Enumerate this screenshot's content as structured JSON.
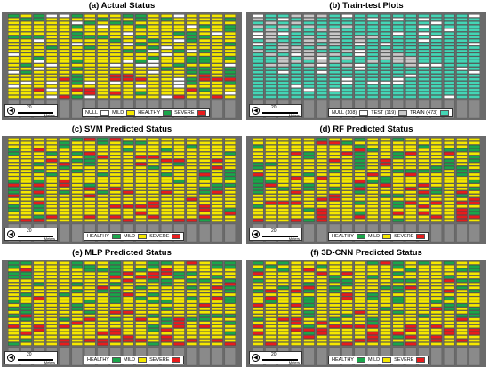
{
  "colors": {
    "healthy": "#1aa64a",
    "mild": "#f5e800",
    "severe": "#e81c1c",
    "null": "#ffffff",
    "test": "#c8c8c8",
    "train": "#44d6b6",
    "background": "#6a6a6a"
  },
  "panels": [
    {
      "id": "a",
      "title": "(a) Actual Status",
      "mode": "actual",
      "scale_label": "20",
      "scale_unit": "Meters",
      "legend": [
        {
          "label": "NULL",
          "color": "#ffffff"
        },
        {
          "label": "MILD",
          "color": "#f5e800"
        },
        {
          "label": "HEALTHY",
          "color": "#1aa64a"
        },
        {
          "label": "SEVERE",
          "color": "#e81c1c"
        }
      ]
    },
    {
      "id": "b",
      "title": "(b) Train-test Plots",
      "mode": "split",
      "scale_label": "20",
      "scale_unit": "Meters",
      "legend": [
        {
          "label": "NULL (108)",
          "color": "#ffffff"
        },
        {
          "label": "TEST (119)",
          "color": "#c8c8c8"
        },
        {
          "label": "TRAIN (473)",
          "color": "#44d6b6"
        }
      ]
    },
    {
      "id": "c",
      "title": "(c) SVM Predicted Status",
      "mode": "pred",
      "scale_label": "20",
      "scale_unit": "Meters",
      "legend": [
        {
          "label": "HEALTHY",
          "color": "#1aa64a"
        },
        {
          "label": "MILD",
          "color": "#f5e800"
        },
        {
          "label": "SEVERE",
          "color": "#e81c1c"
        }
      ]
    },
    {
      "id": "d",
      "title": "(d) RF Predicted Status",
      "mode": "pred",
      "scale_label": "20",
      "scale_unit": "Meters",
      "legend": [
        {
          "label": "HEALTHY",
          "color": "#1aa64a"
        },
        {
          "label": "MILD",
          "color": "#f5e800"
        },
        {
          "label": "SEVERE",
          "color": "#e81c1c"
        }
      ]
    },
    {
      "id": "e",
      "title": "(e) MLP Predicted Status",
      "mode": "pred",
      "scale_label": "20",
      "scale_unit": "Meters",
      "legend": [
        {
          "label": "HEALTHY",
          "color": "#1aa64a"
        },
        {
          "label": "MILD",
          "color": "#f5e800"
        },
        {
          "label": "SEVERE",
          "color": "#e81c1c"
        }
      ]
    },
    {
      "id": "f",
      "title": "(f) 3D-CNN Predicted Status",
      "mode": "pred",
      "scale_label": "20",
      "scale_unit": "Meters",
      "legend": [
        {
          "label": "HEALTHY",
          "color": "#1aa64a"
        },
        {
          "label": "MILD",
          "color": "#f5e800"
        },
        {
          "label": "SEVERE",
          "color": "#e81c1c"
        }
      ]
    }
  ]
}
